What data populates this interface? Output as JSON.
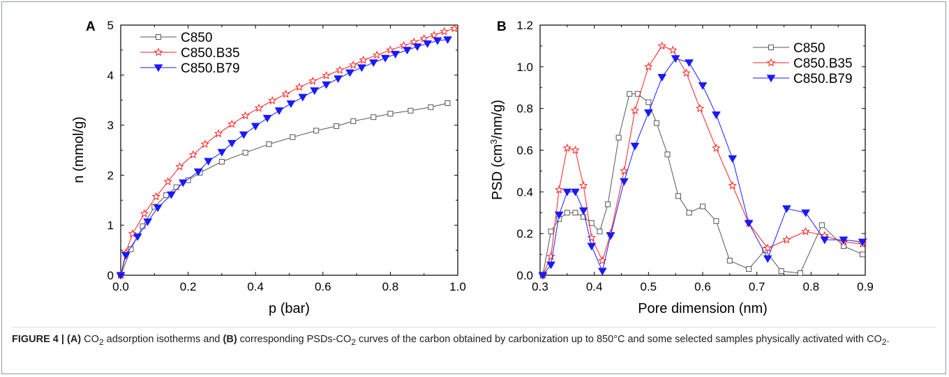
{
  "figure": {
    "caption_label": "FIGURE 4 | ",
    "caption_a": "(A)",
    "caption_part1_prefix": " CO",
    "caption_part1_sub": "2",
    "caption_part1_suffix": " adsorption isotherms and ",
    "caption_b": "(B)",
    "caption_part2_prefix": " corresponding PSDs-CO",
    "caption_part2_sub": "2",
    "caption_part2_mid": " curves of the carbon obtained by carbonization up to 850°C and some selected samples physically activated with CO",
    "caption_part2_sub2": "2",
    "caption_part2_end": "."
  },
  "colors": {
    "C850": "#555555",
    "C850.B35": "#ff2020",
    "C850.B79": "#1a1aff"
  },
  "chart_data": [
    {
      "type": "line",
      "panel_label": "A",
      "xlabel": "p (bar)",
      "ylabel": "n (mmol/g)",
      "xlim": [
        0.0,
        1.0
      ],
      "ylim": [
        0,
        5
      ],
      "xticks": [
        "0.0",
        "0.2",
        "0.4",
        "0.6",
        "0.8",
        "1.0"
      ],
      "yticks": [
        "0",
        "1",
        "2",
        "3",
        "4",
        "5"
      ],
      "legend_position": "top-left",
      "series": [
        {
          "name": "C850",
          "marker": "square-open",
          "x": [
            0.0,
            0.03,
            0.065,
            0.1,
            0.135,
            0.165,
            0.2,
            0.235,
            0.3,
            0.37,
            0.44,
            0.51,
            0.58,
            0.64,
            0.69,
            0.75,
            0.8,
            0.86,
            0.92,
            0.97
          ],
          "y": [
            0.0,
            0.52,
            0.98,
            1.37,
            1.6,
            1.76,
            1.9,
            2.05,
            2.27,
            2.45,
            2.62,
            2.76,
            2.89,
            2.98,
            3.08,
            3.16,
            3.23,
            3.29,
            3.36,
            3.44
          ]
        },
        {
          "name": "C850.B35",
          "marker": "star-open",
          "x": [
            0.0,
            0.015,
            0.035,
            0.07,
            0.105,
            0.14,
            0.175,
            0.215,
            0.25,
            0.29,
            0.33,
            0.37,
            0.41,
            0.45,
            0.49,
            0.53,
            0.57,
            0.61,
            0.65,
            0.69,
            0.72,
            0.76,
            0.8,
            0.84,
            0.87,
            0.9,
            0.93,
            0.96,
            0.99
          ],
          "y": [
            0.0,
            0.45,
            0.83,
            1.23,
            1.57,
            1.87,
            2.17,
            2.41,
            2.62,
            2.83,
            3.02,
            3.19,
            3.34,
            3.49,
            3.62,
            3.76,
            3.88,
            3.99,
            4.1,
            4.2,
            4.3,
            4.4,
            4.5,
            4.59,
            4.66,
            4.73,
            4.8,
            4.87,
            4.93
          ]
        },
        {
          "name": "C850.B79",
          "marker": "triangle-down-filled",
          "x": [
            0.0,
            0.015,
            0.05,
            0.08,
            0.11,
            0.15,
            0.185,
            0.23,
            0.26,
            0.3,
            0.33,
            0.365,
            0.4,
            0.435,
            0.47,
            0.505,
            0.54,
            0.575,
            0.61,
            0.645,
            0.68,
            0.715,
            0.75,
            0.785,
            0.815,
            0.85,
            0.88,
            0.91,
            0.94,
            0.97
          ],
          "y": [
            0.0,
            0.4,
            0.77,
            1.07,
            1.35,
            1.61,
            1.85,
            2.07,
            2.28,
            2.46,
            2.64,
            2.81,
            2.98,
            3.14,
            3.29,
            3.43,
            3.56,
            3.69,
            3.81,
            3.93,
            4.05,
            4.15,
            4.25,
            4.34,
            4.42,
            4.5,
            4.57,
            4.63,
            4.69,
            4.71
          ]
        }
      ]
    },
    {
      "type": "line",
      "panel_label": "B",
      "xlabel": "Pore dimension (nm)",
      "ylabel_prefix": "PSD (cm",
      "ylabel_sup": "3",
      "ylabel_suffix": "/nm/g)",
      "xlim": [
        0.3,
        0.9
      ],
      "ylim": [
        0.0,
        1.2
      ],
      "xticks": [
        "0.3",
        "0.4",
        "0.5",
        "0.6",
        "0.7",
        "0.8",
        "0.9"
      ],
      "yticks": [
        "0.0",
        "0.2",
        "0.4",
        "0.6",
        "0.8",
        "1.0",
        "1.2"
      ],
      "legend_position": "top-right",
      "series": [
        {
          "name": "C850",
          "marker": "square-open",
          "x": [
            0.305,
            0.32,
            0.335,
            0.35,
            0.365,
            0.38,
            0.395,
            0.41,
            0.425,
            0.445,
            0.465,
            0.48,
            0.5,
            0.515,
            0.535,
            0.555,
            0.575,
            0.6,
            0.625,
            0.65,
            0.685,
            0.715,
            0.745,
            0.78,
            0.82,
            0.86,
            0.895
          ],
          "y": [
            0.0,
            0.21,
            0.27,
            0.3,
            0.3,
            0.28,
            0.25,
            0.21,
            0.34,
            0.66,
            0.87,
            0.87,
            0.83,
            0.73,
            0.58,
            0.38,
            0.3,
            0.33,
            0.26,
            0.07,
            0.03,
            0.12,
            0.02,
            0.01,
            0.24,
            0.14,
            0.1
          ]
        },
        {
          "name": "C850.B35",
          "marker": "star-open",
          "x": [
            0.305,
            0.32,
            0.335,
            0.35,
            0.365,
            0.38,
            0.395,
            0.415,
            0.43,
            0.455,
            0.475,
            0.5,
            0.525,
            0.545,
            0.57,
            0.595,
            0.625,
            0.655,
            0.685,
            0.72,
            0.755,
            0.79,
            0.825,
            0.86,
            0.895
          ],
          "y": [
            0.0,
            0.09,
            0.41,
            0.61,
            0.6,
            0.43,
            0.18,
            0.07,
            0.2,
            0.5,
            0.79,
            1.0,
            1.1,
            1.08,
            0.97,
            0.8,
            0.61,
            0.43,
            0.25,
            0.13,
            0.17,
            0.21,
            0.19,
            0.16,
            0.15
          ]
        },
        {
          "name": "C850.B79",
          "marker": "triangle-down-filled",
          "x": [
            0.305,
            0.32,
            0.335,
            0.35,
            0.365,
            0.38,
            0.395,
            0.415,
            0.43,
            0.455,
            0.475,
            0.5,
            0.525,
            0.55,
            0.575,
            0.6,
            0.625,
            0.655,
            0.685,
            0.72,
            0.755,
            0.79,
            0.825,
            0.86,
            0.895
          ],
          "y": [
            0.0,
            0.05,
            0.29,
            0.4,
            0.4,
            0.31,
            0.14,
            0.02,
            0.19,
            0.45,
            0.62,
            0.78,
            0.95,
            1.04,
            1.02,
            0.91,
            0.77,
            0.56,
            0.25,
            0.08,
            0.32,
            0.3,
            0.17,
            0.17,
            0.16
          ]
        }
      ]
    }
  ]
}
